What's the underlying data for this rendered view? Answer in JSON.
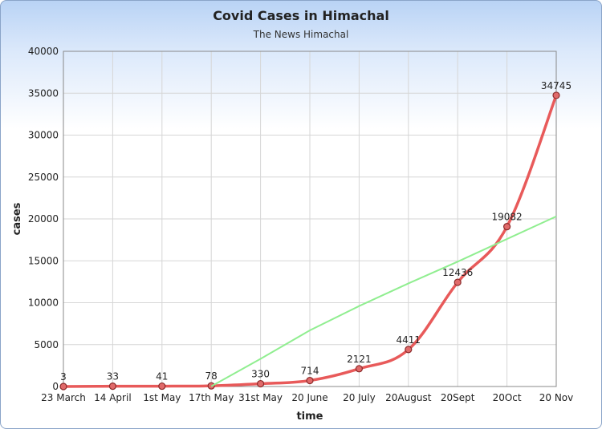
{
  "chart_data": {
    "type": "line",
    "title": "Covid Cases in Himachal",
    "subtitle": "The News Himachal",
    "xlabel": "time",
    "ylabel": "cases",
    "categories": [
      "23 March",
      "14 April",
      "1st May",
      "17th May",
      "31st May",
      "20 June",
      "20 July",
      "20August",
      "20Sept",
      "20Oct",
      "20 Nov"
    ],
    "series": [
      {
        "values": [
          3,
          33,
          41,
          78,
          330,
          714,
          2121,
          4411,
          12436,
          19082,
          34745
        ],
        "color": "#e85a5a",
        "show_labels": true
      },
      {
        "type": "trendline",
        "values": [
          null,
          null,
          null,
          20,
          3300,
          6700,
          9600,
          12300,
          14900,
          17600,
          20300
        ],
        "color": "#90ee90",
        "show_labels": false
      }
    ],
    "data_labels": [
      "3",
      "33",
      "41",
      "78",
      "330",
      "714",
      "2121",
      "4411",
      "12436",
      "19082",
      "34745"
    ],
    "ylim": [
      0,
      40000
    ],
    "yticks": [
      "0",
      "5000",
      "10000",
      "15000",
      "20000",
      "25000",
      "30000",
      "35000",
      "40000"
    ],
    "grid": true
  }
}
